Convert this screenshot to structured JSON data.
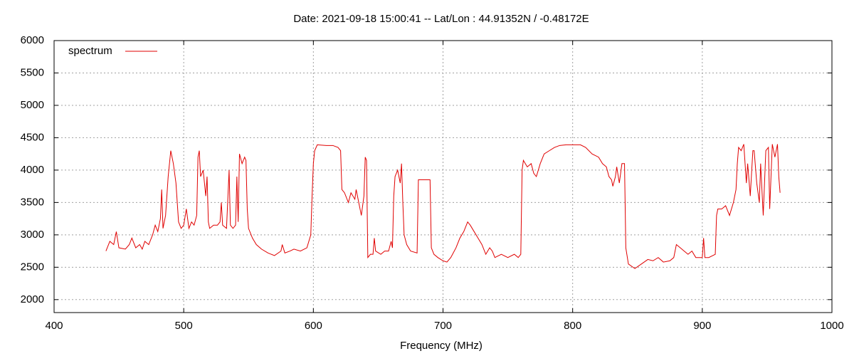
{
  "chart_data": {
    "type": "line",
    "title": "Date: 2021-09-18 15:00:41  --  Lat/Lon : 44.91352N / -0.48172E",
    "x_label": "Frequency (MHz)",
    "x": [
      440,
      443,
      446,
      448,
      450,
      455,
      458,
      460,
      463,
      466,
      468,
      470,
      473,
      476,
      478,
      480,
      482,
      483,
      484,
      486,
      488,
      490,
      492,
      494,
      496,
      498,
      500,
      502,
      504,
      506,
      508,
      510,
      511,
      512,
      513,
      515,
      517,
      518,
      519,
      520,
      523,
      526,
      528,
      529,
      530,
      533,
      535,
      536,
      538,
      540,
      541,
      542,
      543,
      545,
      547,
      548,
      549,
      550,
      553,
      556,
      560,
      565,
      570,
      575,
      576,
      578,
      582,
      585,
      590,
      595,
      598,
      599,
      600,
      601,
      603,
      610,
      615,
      619,
      621,
      622,
      624,
      627,
      629,
      632,
      633,
      635,
      637,
      639,
      640,
      641,
      642,
      644,
      646,
      647,
      648,
      652,
      655,
      658,
      660,
      661,
      662,
      663,
      665,
      667,
      668,
      669,
      670,
      672,
      675,
      680,
      681,
      683,
      687,
      690,
      691,
      693,
      696,
      700,
      703,
      706,
      710,
      713,
      716,
      719,
      721,
      724,
      727,
      730,
      733,
      736,
      738,
      740,
      745,
      750,
      755,
      758,
      760,
      761,
      762,
      765,
      768,
      770,
      772,
      775,
      778,
      782,
      786,
      790,
      795,
      800,
      806,
      810,
      815,
      820,
      823,
      826,
      828,
      830,
      831,
      833,
      834,
      836,
      838,
      840,
      841,
      843,
      848,
      853,
      858,
      862,
      866,
      870,
      875,
      878,
      880,
      883,
      886,
      889,
      892,
      895,
      898,
      900,
      901,
      902,
      905,
      910,
      911,
      912,
      915,
      918,
      921,
      924,
      926,
      927,
      928,
      930,
      932,
      934,
      935,
      937,
      939,
      940,
      942,
      944,
      945,
      947,
      949,
      951,
      952,
      954,
      956,
      958,
      959,
      960
    ],
    "series": [
      {
        "name": "spectrum",
        "color": "#e00000",
        "values": [
          2750,
          2900,
          2850,
          3050,
          2800,
          2780,
          2850,
          2950,
          2800,
          2850,
          2780,
          2900,
          2850,
          3000,
          3150,
          3050,
          3250,
          3700,
          3100,
          3300,
          3900,
          4300,
          4100,
          3800,
          3200,
          3100,
          3150,
          3400,
          3100,
          3200,
          3150,
          3300,
          4200,
          4300,
          3900,
          4000,
          3600,
          3900,
          3200,
          3100,
          3150,
          3150,
          3200,
          3500,
          3150,
          3100,
          4000,
          3150,
          3100,
          3150,
          3900,
          3200,
          4250,
          4100,
          4200,
          4150,
          3400,
          3100,
          2950,
          2850,
          2780,
          2720,
          2680,
          2750,
          2850,
          2720,
          2750,
          2780,
          2750,
          2800,
          3000,
          3600,
          4100,
          4300,
          4390,
          4380,
          4380,
          4350,
          4300,
          3700,
          3650,
          3500,
          3650,
          3550,
          3700,
          3500,
          3300,
          3600,
          4200,
          4150,
          2650,
          2700,
          2700,
          2950,
          2750,
          2700,
          2750,
          2750,
          2900,
          2800,
          3600,
          3900,
          4000,
          3800,
          4100,
          3500,
          3000,
          2850,
          2750,
          2720,
          3850,
          3850,
          3850,
          3850,
          2800,
          2700,
          2650,
          2600,
          2580,
          2650,
          2800,
          2950,
          3050,
          3200,
          3150,
          3050,
          2950,
          2850,
          2700,
          2800,
          2750,
          2650,
          2700,
          2650,
          2700,
          2650,
          2700,
          4000,
          4150,
          4050,
          4100,
          3950,
          3900,
          4100,
          4250,
          4300,
          4350,
          4380,
          4390,
          4390,
          4390,
          4350,
          4250,
          4200,
          4100,
          4050,
          3900,
          3850,
          3750,
          3900,
          4050,
          3800,
          4100,
          4100,
          2800,
          2550,
          2480,
          2550,
          2620,
          2600,
          2650,
          2580,
          2600,
          2650,
          2850,
          2800,
          2750,
          2700,
          2750,
          2650,
          2650,
          2650,
          2950,
          2650,
          2650,
          2700,
          3300,
          3400,
          3400,
          3450,
          3300,
          3500,
          3700,
          4100,
          4350,
          4300,
          4400,
          3800,
          4100,
          3600,
          4300,
          4300,
          3800,
          3500,
          4100,
          3300,
          4300,
          4350,
          3400,
          4400,
          4200,
          4400,
          3900,
          3650
        ]
      }
    ],
    "xlim": [
      400,
      1000
    ],
    "xticks": [
      400,
      500,
      600,
      700,
      800,
      900,
      1000
    ],
    "ylim": [
      1800,
      6000
    ],
    "yticks": [
      2000,
      2500,
      3000,
      3500,
      4000,
      4500,
      5000,
      5500,
      6000
    ],
    "grid": true,
    "legend": "top-left"
  }
}
